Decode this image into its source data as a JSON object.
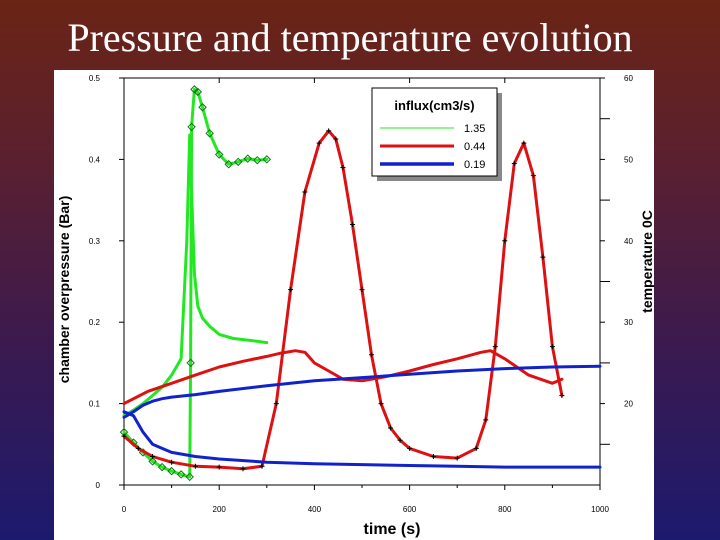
{
  "slide": {
    "title": "Pressure and temperature evolution"
  },
  "chart_data": {
    "type": "line",
    "title": "Pressure and temperature evolution",
    "xlabel": "time (s)",
    "ylabel": "chamber overpressure (Bar)",
    "y2label": "temperature 0C",
    "xlim": [
      0,
      1000
    ],
    "ylim": [
      0,
      0.5
    ],
    "y2lim": [
      10,
      60
    ],
    "x_ticks": [
      "0",
      "200",
      "400",
      "600",
      "800",
      "1000"
    ],
    "y_ticks": [
      "0",
      "0.1",
      "0.2",
      "0.3",
      "0.4",
      "0.5"
    ],
    "y2_ticks": [
      "20",
      "30",
      "40",
      "50",
      "60"
    ],
    "grid": false,
    "legend": {
      "title": "influx(cm3/s)",
      "placement": "top-center",
      "entries": [
        "1.35",
        "0.44",
        "0.19"
      ]
    },
    "series": [
      {
        "name": "1.35",
        "kind": "pressure",
        "axis": "left",
        "color": "#22e822",
        "markers": false,
        "x": [
          0,
          20,
          40,
          60,
          80,
          100,
          120,
          132,
          138,
          142,
          148,
          155,
          165,
          180,
          200,
          230,
          260,
          300
        ],
        "y": [
          0.085,
          0.092,
          0.1,
          0.11,
          0.12,
          0.135,
          0.155,
          0.3,
          0.43,
          0.36,
          0.26,
          0.22,
          0.205,
          0.195,
          0.185,
          0.18,
          0.178,
          0.175
        ]
      },
      {
        "name": "1.35",
        "kind": "temperature",
        "axis": "right",
        "color": "#22e822",
        "markers": true,
        "x": [
          0,
          20,
          40,
          60,
          80,
          100,
          120,
          138,
          140,
          142,
          148,
          155,
          165,
          180,
          200,
          220,
          240,
          260,
          280,
          300
        ],
        "y": [
          16.5,
          15.2,
          14.0,
          12.9,
          12.2,
          11.7,
          11.3,
          11.0,
          25.0,
          54.0,
          58.6,
          58.3,
          56.4,
          53.2,
          50.6,
          49.4,
          49.7,
          50.1,
          49.9,
          50.0
        ]
      },
      {
        "name": "0.44",
        "kind": "pressure",
        "axis": "left",
        "color": "#dd1111",
        "markers": false,
        "x": [
          0,
          50,
          100,
          150,
          200,
          250,
          300,
          330,
          360,
          380,
          400,
          430,
          460,
          500,
          550,
          600,
          650,
          700,
          750,
          770,
          800,
          850,
          900,
          920
        ],
        "y": [
          0.1,
          0.115,
          0.125,
          0.135,
          0.145,
          0.152,
          0.158,
          0.162,
          0.165,
          0.163,
          0.15,
          0.14,
          0.13,
          0.128,
          0.133,
          0.14,
          0.148,
          0.155,
          0.163,
          0.165,
          0.155,
          0.135,
          0.125,
          0.13
        ]
      },
      {
        "name": "0.44",
        "kind": "temperature",
        "axis": "right",
        "color": "#dd1111",
        "markers": true,
        "x": [
          0,
          30,
          60,
          100,
          150,
          200,
          250,
          290,
          320,
          350,
          380,
          410,
          430,
          445,
          460,
          480,
          500,
          520,
          540,
          560,
          580,
          600,
          650,
          700,
          740,
          760,
          780,
          800,
          820,
          840,
          860,
          880,
          900,
          920
        ],
        "y": [
          16.0,
          14.5,
          13.5,
          12.8,
          12.3,
          12.2,
          12.0,
          12.3,
          20.0,
          34.0,
          46.0,
          52.0,
          53.5,
          52.5,
          49.0,
          42.0,
          34.0,
          26.0,
          20.0,
          17.0,
          15.5,
          14.5,
          13.5,
          13.3,
          14.5,
          18.0,
          27.0,
          40.0,
          49.5,
          52.0,
          48.0,
          38.0,
          27.0,
          21.0
        ]
      },
      {
        "name": "0.19",
        "kind": "pressure",
        "axis": "left",
        "color": "#1122cc",
        "markers": false,
        "x": [
          0,
          20,
          40,
          60,
          80,
          100,
          150,
          200,
          300,
          400,
          500,
          600,
          700,
          800,
          900,
          1000
        ],
        "y": [
          0.083,
          0.09,
          0.098,
          0.103,
          0.106,
          0.108,
          0.111,
          0.115,
          0.122,
          0.128,
          0.132,
          0.136,
          0.14,
          0.143,
          0.145,
          0.146
        ]
      },
      {
        "name": "0.19",
        "kind": "temperature",
        "axis": "right",
        "color": "#1122cc",
        "markers": false,
        "x": [
          0,
          20,
          40,
          60,
          80,
          100,
          150,
          200,
          300,
          400,
          500,
          600,
          700,
          800,
          900,
          1000
        ],
        "y": [
          19.0,
          18.5,
          16.5,
          15.0,
          14.5,
          14.0,
          13.5,
          13.2,
          12.8,
          12.6,
          12.5,
          12.4,
          12.3,
          12.2,
          12.2,
          12.2
        ]
      }
    ]
  }
}
